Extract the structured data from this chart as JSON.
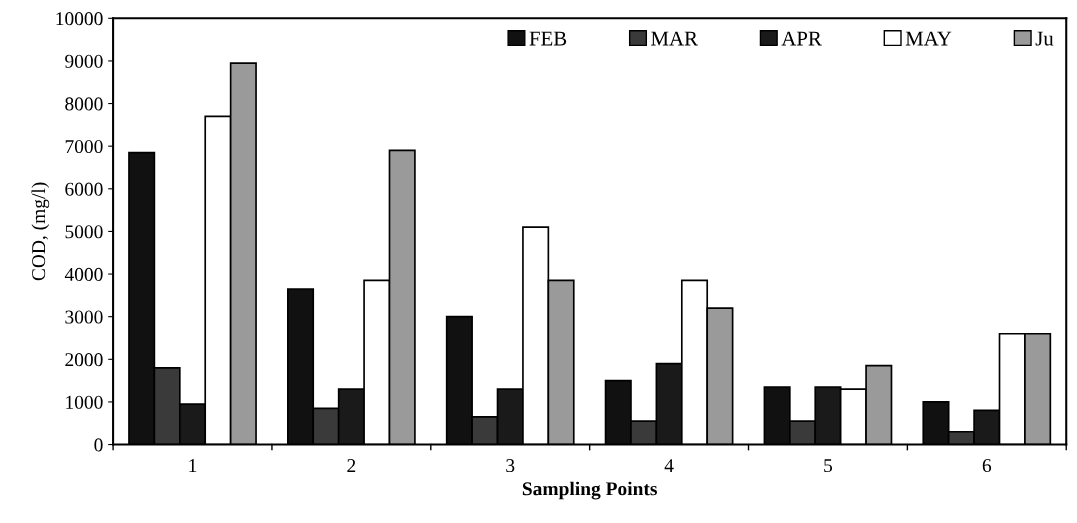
{
  "chart_data": {
    "type": "bar",
    "xlabel": "Sampling Points",
    "ylabel": "COD, (mg/l)",
    "categories": [
      "1",
      "2",
      "3",
      "4",
      "5",
      "6"
    ],
    "series": [
      {
        "name": "FEB",
        "color": "#111111",
        "values": [
          6850,
          3650,
          3000,
          1500,
          1350,
          1000
        ]
      },
      {
        "name": "MAR",
        "color": "#3a3a3a",
        "values": [
          1800,
          850,
          650,
          550,
          550,
          300
        ]
      },
      {
        "name": "APR",
        "color": "#1a1a1a",
        "values": [
          950,
          1300,
          1300,
          1900,
          1350,
          800
        ]
      },
      {
        "name": "MAY",
        "color": "#ffffff",
        "values": [
          7700,
          3850,
          5100,
          3850,
          1300,
          2600
        ]
      },
      {
        "name": "Ju",
        "color": "#9a9a9a",
        "values": [
          8950,
          6900,
          3850,
          3200,
          1850,
          2600
        ]
      }
    ],
    "ylim": [
      0,
      10000
    ],
    "yticks": [
      0,
      1000,
      2000,
      3000,
      4000,
      5000,
      6000,
      7000,
      8000,
      9000,
      10000
    ],
    "grid": false,
    "legend": "top right"
  }
}
